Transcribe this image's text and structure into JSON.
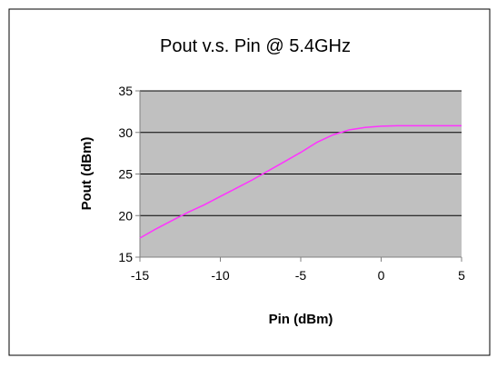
{
  "chart_data": {
    "type": "line",
    "title": "Pout v.s. Pin @ 5.4GHz",
    "xlabel": "Pin (dBm)",
    "ylabel": "Pout (dBm)",
    "xlim": [
      -15,
      5
    ],
    "ylim": [
      15,
      35
    ],
    "x_ticks": [
      -15,
      -10,
      -5,
      0,
      5
    ],
    "y_ticks": [
      15,
      20,
      25,
      30,
      35
    ],
    "x_tick_labels": [
      "-15",
      "-10",
      "-5",
      "0",
      "5"
    ],
    "y_tick_labels": [
      "15",
      "20",
      "25",
      "30",
      "35"
    ],
    "grid": "horizontal major gridlines",
    "legend": "none",
    "plot_background": "#c0c0c0",
    "series": [
      {
        "color": "#ff33ff",
        "x": [
          -15,
          -14,
          -13,
          -12,
          -11,
          -10,
          -9,
          -8,
          -7,
          -6,
          -5,
          -4,
          -3,
          -2,
          -1,
          0,
          1,
          2,
          3,
          4,
          5
        ],
        "y": [
          17.3,
          18.4,
          19.4,
          20.4,
          21.3,
          22.3,
          23.3,
          24.3,
          25.4,
          26.5,
          27.6,
          28.8,
          29.7,
          30.3,
          30.6,
          30.75,
          30.8,
          30.8,
          30.8,
          30.8,
          30.8
        ]
      }
    ]
  }
}
